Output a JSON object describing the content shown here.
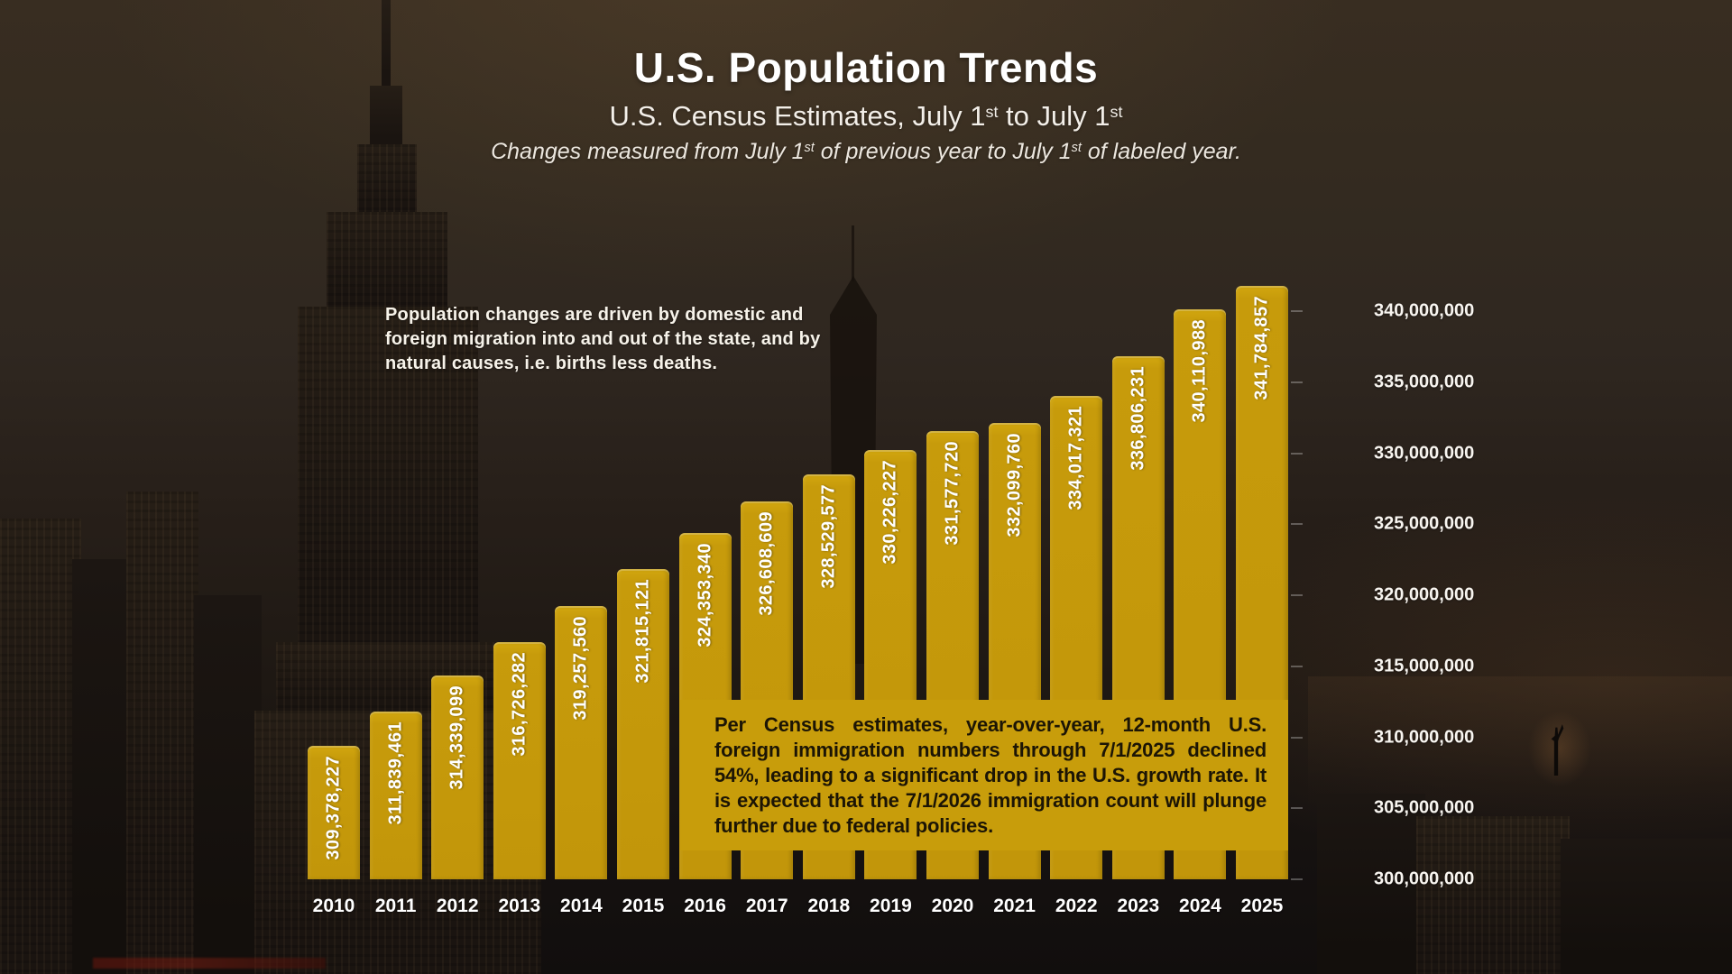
{
  "header": {
    "title": "U.S. Population Trends",
    "subtitle_part1": "U.S. Census Estimates, July 1",
    "subtitle_sup1": "st",
    "subtitle_part2": " to July 1",
    "subtitle_sup2": "st",
    "note_part1": "Changes measured from July 1",
    "note_sup1": "st",
    "note_part2": " of previous year to July 1",
    "note_sup2": "st",
    "note_part3": " of labeled year."
  },
  "info_text": "Population changes are driven by domestic and foreign migration into and out of the state, and by natural causes, i.e. births less deaths.",
  "annotation": "Per Census estimates, year-over-year, 12-month U.S. foreign immigration numbers through 7/1/2025 declined 54%, leading to a significant drop in the U.S. growth rate. It is expected that the 7/1/2026 immigration count will plunge further due to federal policies.",
  "background": {
    "description": "New York City skyline at dusk with Empire State Building and Statue of Liberty silhouettes"
  },
  "colors": {
    "bar_gold": "#c5990b",
    "annotation_bg": "#c89d0b",
    "annotation_text": "#1c1505",
    "label_white": "#ffffff"
  },
  "chart_data": {
    "type": "bar",
    "title": "U.S. Population Trends",
    "xlabel": "",
    "ylabel": "",
    "grid": false,
    "legend": "none",
    "ylim": [
      300000000,
      345000000
    ],
    "categories": [
      "2010",
      "2011",
      "2012",
      "2013",
      "2014",
      "2015",
      "2016",
      "2017",
      "2018",
      "2019",
      "2020",
      "2021",
      "2022",
      "2023",
      "2024",
      "2025"
    ],
    "values": [
      309378227,
      311839461,
      314339099,
      316726282,
      319257560,
      321815121,
      324353340,
      326608609,
      328529577,
      330226227,
      331577720,
      332099760,
      334017321,
      336806231,
      340110988,
      341784857
    ],
    "value_labels": [
      "309,378,227",
      "311,839,461",
      "314,339,099",
      "316,726,282",
      "319,257,560",
      "321,815,121",
      "324,353,340",
      "326,608,609",
      "328,529,577",
      "330,226,227",
      "331,577,720",
      "332,099,760",
      "334,017,321",
      "336,806,231",
      "340,110,988",
      "341,784,857"
    ],
    "yticks": [
      {
        "value": 340000000,
        "label": "340,000,000"
      },
      {
        "value": 335000000,
        "label": "335,000,000"
      },
      {
        "value": 330000000,
        "label": "330,000,000"
      },
      {
        "value": 325000000,
        "label": "325,000,000"
      },
      {
        "value": 320000000,
        "label": "320,000,000"
      },
      {
        "value": 315000000,
        "label": "315,000,000"
      },
      {
        "value": 310000000,
        "label": "310,000,000"
      },
      {
        "value": 305000000,
        "label": "305,000,000"
      },
      {
        "value": 300000000,
        "label": "300,000,000"
      }
    ]
  }
}
